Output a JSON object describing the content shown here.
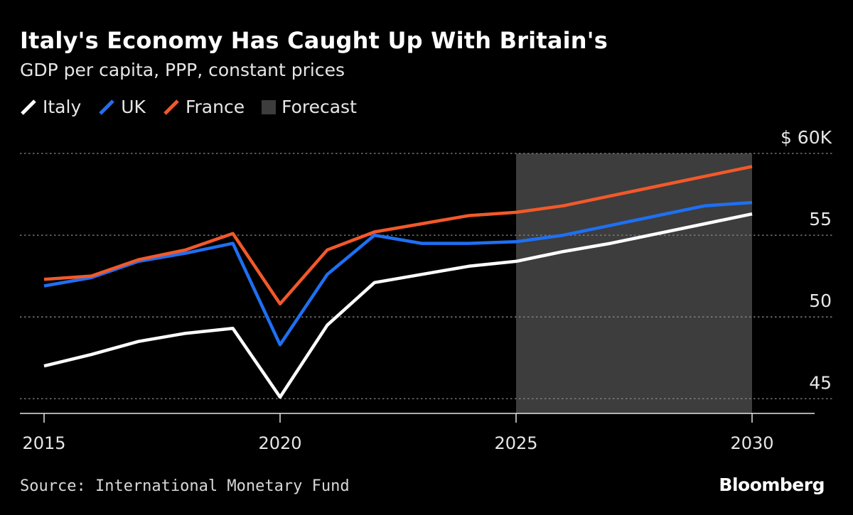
{
  "title": "Italy's Economy Has Caught Up With Britain's",
  "subtitle": "GDP per capita, PPP, constant prices",
  "legend": [
    {
      "label": "Italy",
      "color": "#ffffff",
      "type": "line"
    },
    {
      "label": "UK",
      "color": "#1f6ff2",
      "type": "line"
    },
    {
      "label": "France",
      "color": "#f2592a",
      "type": "line"
    },
    {
      "label": "Forecast",
      "color": "#3d3d3d",
      "type": "box"
    }
  ],
  "source": "Source: International Monetary Fund",
  "brand": "Bloomberg",
  "chart_data": {
    "type": "line",
    "x": [
      2015,
      2016,
      2017,
      2018,
      2019,
      2020,
      2021,
      2022,
      2023,
      2024,
      2025,
      2026,
      2027,
      2028,
      2029,
      2030
    ],
    "series": [
      {
        "name": "Italy",
        "color": "#ffffff",
        "values": [
          47.0,
          47.7,
          48.5,
          49.0,
          49.3,
          45.1,
          49.5,
          52.1,
          52.6,
          53.1,
          53.4,
          54.0,
          54.5,
          55.1,
          55.7,
          56.3
        ]
      },
      {
        "name": "UK",
        "color": "#1f6ff2",
        "values": [
          51.9,
          52.4,
          53.4,
          53.9,
          54.5,
          48.3,
          52.6,
          55.0,
          54.5,
          54.5,
          54.6,
          55.0,
          55.6,
          56.2,
          56.8,
          57.0
        ]
      },
      {
        "name": "France",
        "color": "#f2592a",
        "values": [
          52.3,
          52.5,
          53.5,
          54.1,
          55.1,
          50.8,
          54.1,
          55.2,
          55.7,
          56.2,
          56.4,
          56.8,
          57.4,
          58.0,
          58.6,
          59.2
        ]
      }
    ],
    "forecast_range": [
      2025,
      2030
    ],
    "xticks": [
      "2015",
      "2020",
      "2025",
      "2030"
    ],
    "yticks": [
      {
        "value": 60,
        "label": "$ 60K"
      },
      {
        "value": 55,
        "label": "55"
      },
      {
        "value": 50,
        "label": "50"
      },
      {
        "value": 45,
        "label": "45"
      }
    ],
    "ylim": [
      44.1,
      60
    ],
    "xlim": [
      2015,
      2030
    ],
    "grid": true
  }
}
